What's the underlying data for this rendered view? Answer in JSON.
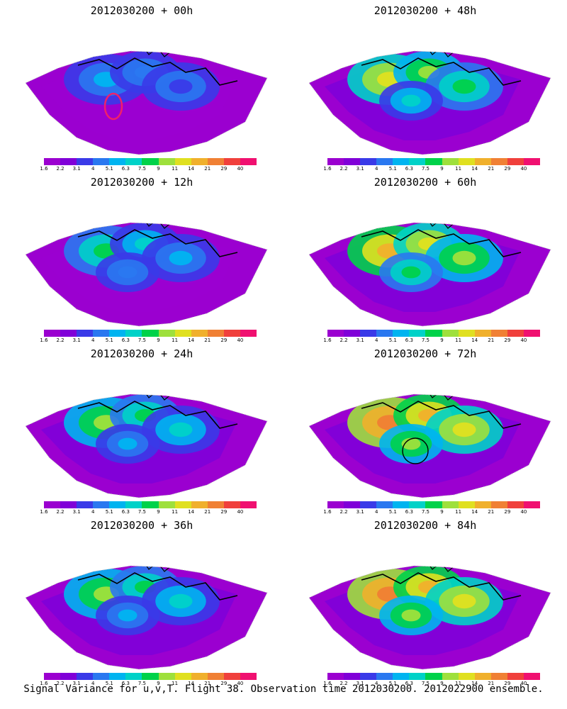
{
  "panels": [
    {
      "title": "2012030200 + 00h",
      "marker": "red-loop"
    },
    {
      "title": "2012030200 + 48h",
      "marker": ""
    },
    {
      "title": "2012030200 + 12h",
      "marker": ""
    },
    {
      "title": "2012030200 + 60h",
      "marker": ""
    },
    {
      "title": "2012030200 + 24h",
      "marker": ""
    },
    {
      "title": "2012030200 + 72h",
      "marker": "black-circle"
    },
    {
      "title": "2012030200 + 36h",
      "marker": ""
    },
    {
      "title": "2012030200 + 84h",
      "marker": ""
    }
  ],
  "colorbar": {
    "ticks": [
      "1.6",
      "2.2",
      "3.1",
      "4",
      "5.1",
      "6.3",
      "7.5",
      "9",
      "11",
      "14",
      "21",
      "29",
      "40"
    ],
    "colors": [
      "#9b00d0",
      "#8000d8",
      "#3a3ae8",
      "#2a78f0",
      "#00b4f0",
      "#00d2c8",
      "#00d24a",
      "#9ee03c",
      "#e0e020",
      "#f0b02c",
      "#f08034",
      "#f0403c",
      "#f01070"
    ]
  },
  "caption": "Signal Variance for u,v,T. Flight 38. Observation time 2012030200. 2012022900 ensemble."
}
